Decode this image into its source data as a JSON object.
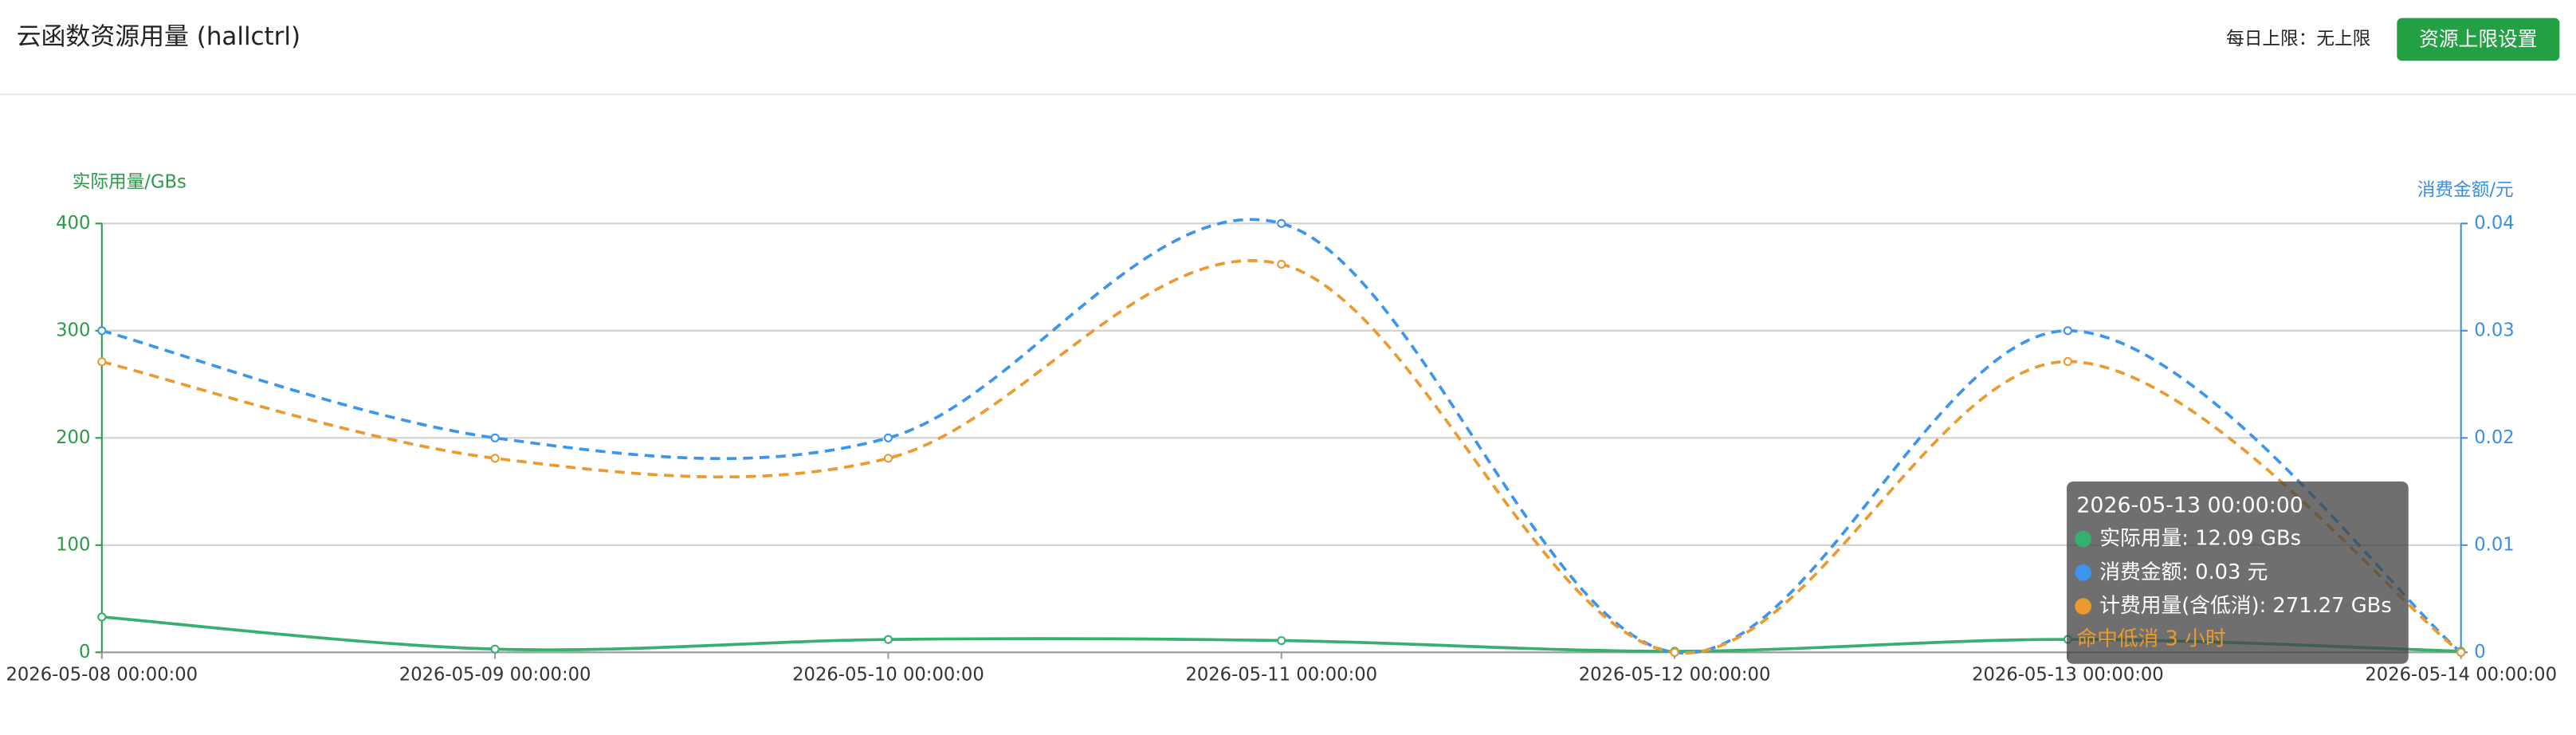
{
  "header": {
    "title": "云函数资源用量 (hallctrl)",
    "limit_text": "每日上限：无上限",
    "button": "资源上限设置"
  },
  "chart_data": {
    "type": "line",
    "y_label": "实际用量/GBs",
    "y2_label": "消费金额/元",
    "categories": [
      "2026-05-08 00:00:00",
      "2026-05-09 00:00:00",
      "2026-05-10 00:00:00",
      "2026-05-11 00:00:00",
      "2026-05-12 00:00:00",
      "2026-05-13 00:00:00",
      "2026-05-14 00:00:00"
    ],
    "series": [
      {
        "name": "实际用量",
        "color": "#35b06e",
        "dashed": false,
        "values": [
          33,
          3,
          12,
          11,
          1,
          12.09,
          1
        ]
      },
      {
        "name": "消费金额",
        "color": "#3b95ee",
        "dashed": true,
        "axis": "y2",
        "values": [
          0.03,
          0.02,
          0.02,
          0.04,
          0,
          0.03,
          0
        ]
      },
      {
        "name": "计费用量(含低消)",
        "color": "#eb9a2e",
        "dashed": true,
        "values": [
          271,
          181,
          181,
          362,
          0,
          271.27,
          0
        ]
      }
    ],
    "ylim": [
      0,
      400
    ],
    "yticks": [
      0,
      100,
      200,
      300,
      400
    ],
    "y2lim": [
      0,
      0.04
    ],
    "y2ticks": [
      0,
      0.01,
      0.02,
      0.03,
      0.04
    ],
    "grid": true,
    "smooth": true,
    "tooltip": {
      "title": "2026-05-13 00:00:00",
      "items": [
        {
          "text": "实际用量: 12.09 GBs",
          "color": "#35b06e"
        },
        {
          "text": "消费金额: 0.03 元",
          "color": "#3b95ee"
        },
        {
          "text": "计费用量(含低消): 271.27 GBs",
          "color": "#eb9a2e"
        }
      ],
      "note": "命中低消 3 小时"
    }
  }
}
